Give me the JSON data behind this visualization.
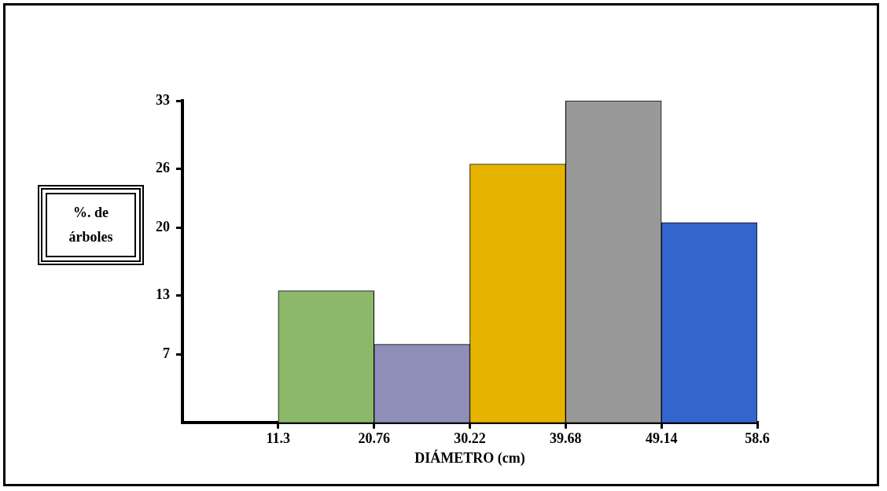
{
  "chart_data": {
    "type": "histogram",
    "xlabel": "DIÁMETRO (cm)",
    "ylabel": "%. de árboles",
    "bins": [
      11.3,
      20.76,
      30.22,
      39.68,
      49.14,
      58.6
    ],
    "values": [
      13.5,
      8,
      26.5,
      33,
      20.5
    ],
    "colors": [
      "#8cb86a",
      "#8e8eb8",
      "#e6b400",
      "#999999",
      "#3366cc"
    ],
    "xlim": [
      1.84,
      58.6
    ],
    "xticks": [
      11.3,
      20.76,
      30.22,
      39.68,
      49.14,
      58.6
    ],
    "ylim": [
      0,
      33
    ],
    "yticks": [
      7,
      13,
      20,
      26,
      33
    ],
    "grid": false,
    "legend": false
  }
}
